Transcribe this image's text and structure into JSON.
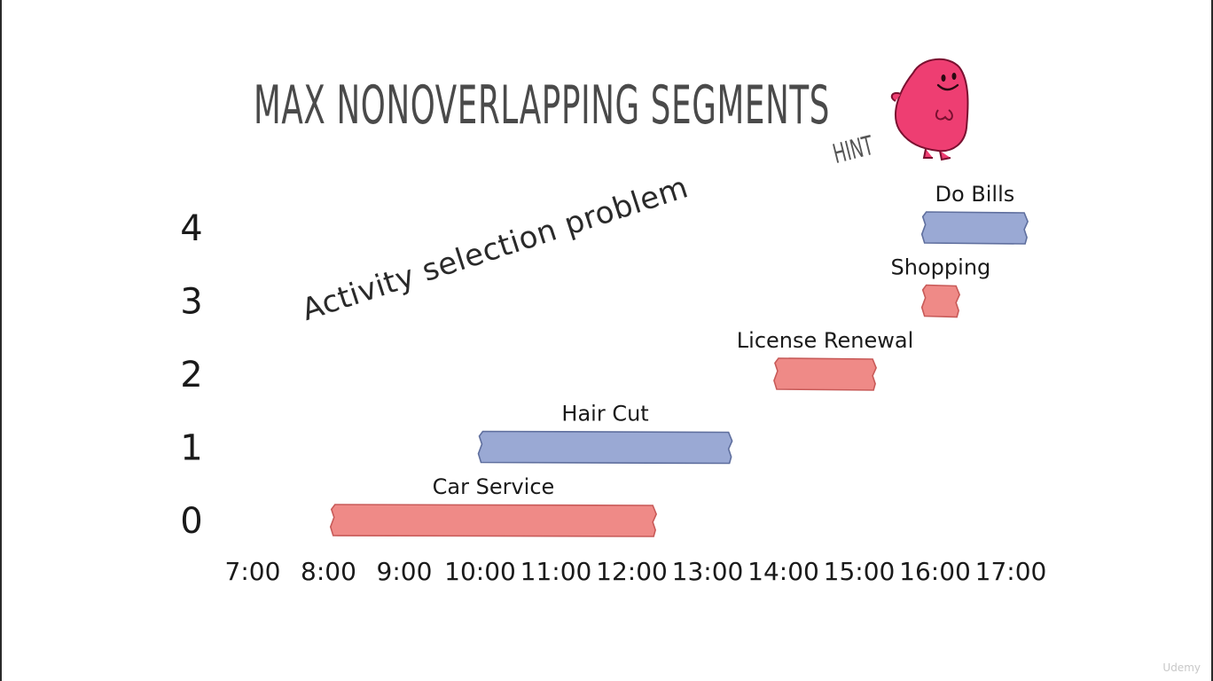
{
  "slide": {
    "title": "MAX NONOVERLAPPING SEGMENTS",
    "hint": "HINT",
    "subtitle": "Activity selection problem",
    "watermark": "Udemy"
  },
  "colors": {
    "red": "#ef8a87",
    "blue": "#9aa9d4",
    "text": "#1a1a1a",
    "title": "#4a4a4a",
    "mascot": "#ee3e72"
  },
  "chart_data": {
    "type": "bar",
    "orientation": "horizontal",
    "x_ticks": [
      "7:00",
      "8:00",
      "9:00",
      "10:00",
      "11:00",
      "12:00",
      "13:00",
      "14:00",
      "15:00",
      "16:00",
      "17:00"
    ],
    "y_ticks": [
      "0",
      "1",
      "2",
      "3",
      "4"
    ],
    "xlim": [
      7,
      17
    ],
    "ylim": [
      0,
      4
    ],
    "grid": false,
    "segments": [
      {
        "label": "Car Service",
        "row": 0,
        "start": 8.05,
        "end": 12.3,
        "color": "red"
      },
      {
        "label": "Hair Cut",
        "row": 1,
        "start": 10.0,
        "end": 13.3,
        "color": "blue"
      },
      {
        "label": "License Renewal",
        "row": 2,
        "start": 13.9,
        "end": 15.2,
        "color": "red"
      },
      {
        "label": "Shopping",
        "row": 3,
        "start": 15.85,
        "end": 16.3,
        "color": "red"
      },
      {
        "label": "Do Bills",
        "row": 4,
        "start": 15.85,
        "end": 17.2,
        "color": "blue"
      }
    ]
  }
}
